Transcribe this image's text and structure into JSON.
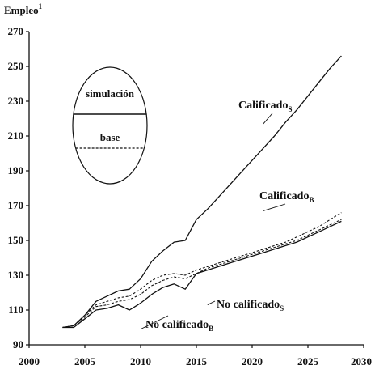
{
  "chart_data": {
    "type": "line",
    "ylabel": "Empleo",
    "ylabel_superscript": "1",
    "xlim": [
      2000,
      2030
    ],
    "ylim": [
      90,
      270
    ],
    "x_ticks": [
      "2000",
      "2005",
      "2010",
      "2015",
      "2020",
      "2025",
      "2030"
    ],
    "y_ticks": [
      "90",
      "110",
      "130",
      "150",
      "170",
      "190",
      "210",
      "230",
      "250",
      "270"
    ],
    "grid": false,
    "legend": {
      "placement": "top-left",
      "solid_label": "simulación",
      "dashed_label": "base"
    },
    "series": [
      {
        "name": "Calificado",
        "name_sub": "S",
        "style": "solid",
        "x": [
          2003,
          2004,
          2005,
          2006,
          2007,
          2008,
          2009,
          2010,
          2011,
          2012,
          2013,
          2014,
          2015,
          2016,
          2017,
          2018,
          2019,
          2020,
          2021,
          2022,
          2023,
          2024,
          2025,
          2026,
          2027,
          2028
        ],
        "y": [
          100,
          101,
          107,
          115,
          118,
          121,
          122,
          128,
          138,
          144,
          149,
          150,
          162,
          168,
          175,
          182,
          189,
          196,
          203,
          210,
          218,
          225,
          233,
          241,
          249,
          256
        ]
      },
      {
        "name": "Calificado",
        "name_sub": "B",
        "style": "dashed",
        "x": [
          2003,
          2004,
          2005,
          2006,
          2007,
          2008,
          2009,
          2010,
          2011,
          2012,
          2013,
          2014,
          2015,
          2016,
          2017,
          2018,
          2019,
          2020,
          2021,
          2022,
          2023,
          2024,
          2025,
          2026,
          2027,
          2028
        ],
        "y": [
          100,
          101,
          107,
          113,
          115,
          117,
          118,
          122,
          127,
          130,
          131,
          130,
          133,
          135,
          137,
          139,
          141,
          143,
          145,
          147,
          149,
          152,
          155,
          158,
          162,
          166
        ]
      },
      {
        "name": "No calificado",
        "name_sub": "S",
        "style": "solid",
        "x": [
          2003,
          2004,
          2005,
          2006,
          2007,
          2008,
          2009,
          2010,
          2011,
          2012,
          2013,
          2014,
          2015,
          2016,
          2017,
          2018,
          2019,
          2020,
          2021,
          2022,
          2023,
          2024,
          2025,
          2026,
          2027,
          2028
        ],
        "y": [
          100,
          100,
          105,
          110,
          111,
          113,
          110,
          114,
          119,
          123,
          125,
          122,
          131,
          133,
          135,
          137,
          139,
          141,
          143,
          145,
          147,
          149,
          152,
          155,
          158,
          161
        ]
      },
      {
        "name": "No calificado",
        "name_sub": "B",
        "style": "dashed",
        "x": [
          2003,
          2004,
          2005,
          2006,
          2007,
          2008,
          2009,
          2010,
          2011,
          2012,
          2013,
          2014,
          2015,
          2016,
          2017,
          2018,
          2019,
          2020,
          2021,
          2022,
          2023,
          2024,
          2025,
          2026,
          2027,
          2028
        ],
        "y": [
          100,
          101,
          106,
          112,
          113,
          115,
          116,
          119,
          124,
          127,
          129,
          128,
          131,
          134,
          136,
          138,
          140,
          142,
          144,
          146,
          148,
          150,
          153,
          156,
          159,
          162
        ]
      }
    ],
    "annotations": [
      {
        "text": "Calificado",
        "sub": "S",
        "anchor_x": 2021,
        "anchor_y": 217
      },
      {
        "text": "Calificado",
        "sub": "B",
        "anchor_x": 2021,
        "anchor_y": 167
      },
      {
        "text": "No calificado",
        "sub": "S",
        "anchor_x": 2016,
        "anchor_y": 113
      },
      {
        "text": "No calificado",
        "sub": "B",
        "anchor_x": 2010,
        "anchor_y": 99
      }
    ]
  }
}
